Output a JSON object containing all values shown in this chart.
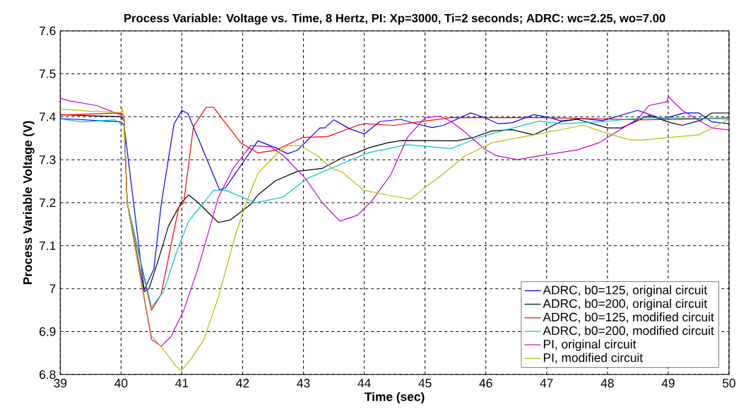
{
  "chart_data": {
    "type": "line",
    "title": "Process Variable: Voltage vs. Time, 8 Hertz, PI: Xp=3000, Ti=2 seconds; ADRC: wc=2.25, wo=7.00",
    "xlabel": "Time (sec)",
    "ylabel": "Process Variable Voltage (V)",
    "xlim": [
      39,
      50
    ],
    "ylim": [
      6.8,
      7.6
    ],
    "xticks": [
      39,
      40,
      41,
      42,
      43,
      44,
      45,
      46,
      47,
      48,
      49,
      50
    ],
    "yticks": [
      6.8,
      6.9,
      {
        "value": 7,
        "label": "7"
      },
      7.1,
      7.2,
      7.3,
      7.4,
      7.5,
      7.6
    ],
    "grid": true,
    "legend": "bottom right",
    "series": [
      {
        "name": "ADRC, b0=125, original circuit",
        "color": "#0000ff",
        "x": [
          39,
          40,
          40.05,
          40.38,
          40.54,
          40.66,
          40.87,
          41.0,
          41.1,
          41.62,
          41.72,
          42.25,
          42.54,
          42.74,
          42.9,
          43.27,
          43.35,
          43.5,
          43.76,
          44.0,
          44.26,
          44.6,
          44.9,
          45.12,
          45.3,
          45.75,
          45.98,
          46.2,
          46.43,
          46.79,
          47.06,
          47.24,
          47.56,
          47.92,
          48.5,
          48.9,
          49.27,
          49.5,
          49.72,
          50
        ],
        "values": [
          7.396,
          7.388,
          7.38,
          6.997,
          7.046,
          7.196,
          7.383,
          7.415,
          7.407,
          7.23,
          7.235,
          7.344,
          7.328,
          7.314,
          7.322,
          7.374,
          7.374,
          7.393,
          7.372,
          7.36,
          7.389,
          7.394,
          7.382,
          7.375,
          7.38,
          7.409,
          7.398,
          7.384,
          7.386,
          7.405,
          7.398,
          7.39,
          7.396,
          7.391,
          7.415,
          7.395,
          7.409,
          7.409,
          7.388,
          7.384
        ]
      },
      {
        "name": "ADRC, b0=200, original circuit",
        "color": "#000000",
        "x": [
          39,
          40,
          40.05,
          40.1,
          40.38,
          40.46,
          40.62,
          40.78,
          40.99,
          41.11,
          41.27,
          41.6,
          41.8,
          42.13,
          42.25,
          42.54,
          42.9,
          43.31,
          43.63,
          43.89,
          44.08,
          44.4,
          44.62,
          45.52,
          45.8,
          46.1,
          46.43,
          46.79,
          47.24,
          47.51,
          48.0,
          48.23,
          48.68,
          49.05,
          49.23,
          49.54,
          49.72,
          50
        ],
        "values": [
          7.405,
          7.4,
          7.39,
          7.2,
          6.993,
          7.0,
          7.07,
          7.146,
          7.2,
          7.218,
          7.2,
          7.154,
          7.16,
          7.196,
          7.218,
          7.251,
          7.273,
          7.28,
          7.304,
          7.317,
          7.328,
          7.34,
          7.345,
          7.344,
          7.352,
          7.367,
          7.37,
          7.358,
          7.389,
          7.394,
          7.374,
          7.374,
          7.403,
          7.386,
          7.38,
          7.392,
          7.409,
          7.409
        ]
      },
      {
        "name": "ADRC, b0=125, modified circuit",
        "color": "#ff0000",
        "x": [
          39,
          40,
          40.05,
          40.1,
          40.5,
          40.66,
          40.82,
          40.95,
          41.03,
          41.19,
          41.4,
          41.52,
          41.97,
          42.25,
          42.54,
          42.99,
          43.4,
          43.89,
          44.0,
          44.49,
          45.0,
          45.43,
          47.0,
          48.6,
          49.5,
          50
        ],
        "values": [
          7.404,
          7.409,
          7.4,
          7.2,
          6.95,
          6.987,
          7.1,
          7.19,
          7.2,
          7.377,
          7.422,
          7.422,
          7.339,
          7.316,
          7.322,
          7.352,
          7.354,
          7.38,
          7.384,
          7.38,
          7.39,
          7.398,
          7.398,
          7.393,
          7.395,
          7.398
        ]
      },
      {
        "name": "ADRC, b0=200, modified circuit",
        "color": "#00c8c8",
        "x": [
          39,
          39.36,
          39.89,
          40.05,
          40.1,
          40.5,
          40.7,
          40.9,
          41.11,
          41.36,
          41.52,
          41.72,
          42.21,
          42.66,
          43.07,
          43.89,
          44.08,
          44.71,
          45.43,
          45.89,
          46.34,
          46.88,
          47.24,
          47.96,
          48.59,
          50
        ],
        "values": [
          7.395,
          7.388,
          7.393,
          7.38,
          7.2,
          6.957,
          6.993,
          7.08,
          7.157,
          7.2,
          7.229,
          7.229,
          7.2,
          7.213,
          7.257,
          7.306,
          7.317,
          7.335,
          7.326,
          7.352,
          7.37,
          7.39,
          7.384,
          7.389,
          7.398,
          7.395
        ]
      },
      {
        "name": "PI, original circuit",
        "color": "#cc00cc",
        "x": [
          39,
          39.16,
          39.6,
          40,
          40.05,
          40.1,
          40.5,
          40.66,
          40.82,
          41.03,
          41.27,
          41.6,
          41.84,
          42.13,
          42.46,
          42.66,
          43.03,
          43.31,
          43.6,
          43.89,
          44.13,
          44.44,
          44.71,
          45.0,
          45.25,
          45.43,
          45.66,
          45.98,
          46.16,
          46.52,
          46.88,
          47.51,
          47.87,
          48.14,
          48.5,
          48.68,
          48.98,
          49.0,
          49.23,
          49.5,
          49.72,
          50
        ],
        "values": [
          7.443,
          7.437,
          7.426,
          7.404,
          7.39,
          7.2,
          6.882,
          6.866,
          6.888,
          6.949,
          7.049,
          7.212,
          7.279,
          7.333,
          7.33,
          7.311,
          7.257,
          7.2,
          7.157,
          7.171,
          7.205,
          7.266,
          7.352,
          7.398,
          7.401,
          7.389,
          7.364,
          7.325,
          7.31,
          7.3,
          7.309,
          7.323,
          7.34,
          7.364,
          7.395,
          7.426,
          7.435,
          7.447,
          7.415,
          7.392,
          7.374,
          7.369
        ]
      },
      {
        "name": "PI, modified circuit",
        "color": "#bcbc00",
        "x": [
          39,
          39.48,
          40,
          40.02,
          40.05,
          40.1,
          40.5,
          40.7,
          40.9,
          40.99,
          41.15,
          41.36,
          41.6,
          41.89,
          42.09,
          42.25,
          42.54,
          42.74,
          42.95,
          43.23,
          43.48,
          43.63,
          43.99,
          44.53,
          44.76,
          45.0,
          45.21,
          45.66,
          46.11,
          46.79,
          47.6,
          48.01,
          48.37,
          48.59,
          49.5,
          49.81,
          50
        ],
        "values": [
          7.418,
          7.413,
          7.41,
          7.42,
          7.39,
          7.2,
          6.89,
          6.858,
          6.82,
          6.809,
          6.836,
          6.881,
          6.98,
          7.129,
          7.212,
          7.268,
          7.311,
          7.333,
          7.333,
          7.309,
          7.279,
          7.272,
          7.229,
          7.214,
          7.208,
          7.236,
          7.257,
          7.309,
          7.34,
          7.358,
          7.38,
          7.361,
          7.346,
          7.346,
          7.358,
          7.38,
          7.395
        ]
      }
    ]
  }
}
